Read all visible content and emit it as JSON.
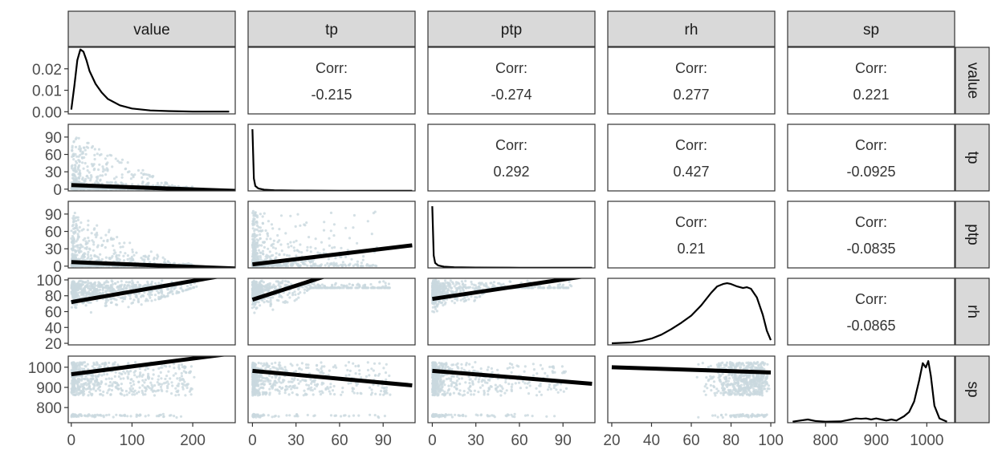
{
  "chart_data": {
    "type": "scatter",
    "variables": [
      "value",
      "tp",
      "ptp",
      "rh",
      "sp"
    ],
    "corr_label": "Corr:",
    "correlations": [
      {
        "row": "value",
        "col": "tp",
        "value": "-0.215"
      },
      {
        "row": "value",
        "col": "ptp",
        "value": "-0.274"
      },
      {
        "row": "value",
        "col": "rh",
        "value": "0.277"
      },
      {
        "row": "value",
        "col": "sp",
        "value": "0.221"
      },
      {
        "row": "tp",
        "col": "ptp",
        "value": "0.292"
      },
      {
        "row": "tp",
        "col": "rh",
        "value": "0.427"
      },
      {
        "row": "tp",
        "col": "sp",
        "value": "-0.0925"
      },
      {
        "row": "ptp",
        "col": "rh",
        "value": "0.21"
      },
      {
        "row": "ptp",
        "col": "sp",
        "value": "-0.0835"
      },
      {
        "row": "rh",
        "col": "sp",
        "value": "-0.0865"
      }
    ],
    "ranges": {
      "value": [
        -5,
        270
      ],
      "tp": [
        -3,
        112
      ],
      "ptp": [
        -3,
        112
      ],
      "rh": [
        18,
        102
      ],
      "sp": [
        725,
        1055
      ]
    },
    "x_ticks": {
      "value": [
        0,
        100,
        200
      ],
      "tp": [
        0,
        30,
        60,
        90
      ],
      "ptp": [
        0,
        30,
        60,
        90
      ],
      "rh": [
        20,
        40,
        60,
        80,
        100
      ],
      "sp": [
        800,
        900,
        1000
      ]
    },
    "y_ticks": {
      "value": [
        "0.00",
        "0.01",
        "0.02"
      ],
      "tp": [
        0,
        30,
        60,
        90
      ],
      "ptp": [
        0,
        30,
        60,
        90
      ],
      "rh": [
        20,
        40,
        60,
        80,
        100
      ],
      "sp": [
        800,
        900,
        1000
      ]
    },
    "density_ylim": [
      -0.001,
      0.03
    ],
    "densities": {
      "value": {
        "x": [
          0,
          5,
          10,
          15,
          20,
          25,
          30,
          40,
          50,
          60,
          80,
          100,
          130,
          160,
          200,
          260
        ],
        "y": [
          0.001,
          0.012,
          0.024,
          0.029,
          0.028,
          0.024,
          0.019,
          0.013,
          0.009,
          0.006,
          0.003,
          0.0015,
          0.0006,
          0.0003,
          0.0001,
          0.0001
        ]
      },
      "tp": {
        "x": [
          0,
          0.5,
          1,
          2,
          4,
          8,
          15,
          30,
          60,
          110
        ],
        "y": [
          1.0,
          0.6,
          0.2,
          0.08,
          0.04,
          0.02,
          0.01,
          0.005,
          0.002,
          0.001
        ]
      },
      "ptp": {
        "x": [
          0,
          0.5,
          1,
          2,
          4,
          8,
          15,
          30,
          60,
          110
        ],
        "y": [
          1.0,
          0.6,
          0.2,
          0.08,
          0.04,
          0.02,
          0.01,
          0.005,
          0.002,
          0.001
        ]
      },
      "rh": {
        "x": [
          20,
          30,
          35,
          40,
          45,
          50,
          55,
          60,
          65,
          70,
          73,
          76,
          78,
          80,
          83,
          86,
          88,
          90,
          93,
          96,
          98,
          100
        ],
        "y": [
          0.002,
          0.003,
          0.005,
          0.008,
          0.013,
          0.02,
          0.028,
          0.037,
          0.05,
          0.066,
          0.074,
          0.077,
          0.078,
          0.077,
          0.074,
          0.072,
          0.073,
          0.071,
          0.06,
          0.038,
          0.018,
          0.006
        ]
      },
      "sp": {
        "x": [
          735,
          750,
          765,
          780,
          800,
          830,
          850,
          860,
          870,
          880,
          890,
          900,
          910,
          920,
          930,
          940,
          955,
          965,
          975,
          985,
          992,
          998,
          1003,
          1008,
          1015,
          1025,
          1040
        ],
        "y": [
          0.0005,
          0.001,
          0.0015,
          0.0008,
          0.0005,
          0.0006,
          0.0015,
          0.002,
          0.0018,
          0.002,
          0.0015,
          0.002,
          0.0015,
          0.001,
          0.0015,
          0.001,
          0.003,
          0.005,
          0.01,
          0.02,
          0.028,
          0.026,
          0.029,
          0.022,
          0.008,
          0.002,
          0.0005
        ]
      }
    },
    "regression_lines": [
      {
        "x": "value",
        "y": "tp",
        "x0": 0,
        "y0": 7,
        "x1": 270,
        "y1": -3
      },
      {
        "x": "value",
        "y": "ptp",
        "x0": 0,
        "y0": 7,
        "x1": 270,
        "y1": -4
      },
      {
        "x": "value",
        "y": "rh",
        "x0": 0,
        "y0": 72,
        "x1": 270,
        "y1": 108
      },
      {
        "x": "value",
        "y": "sp",
        "x0": 0,
        "y0": 965,
        "x1": 270,
        "y1": 1070
      },
      {
        "x": "tp",
        "y": "ptp",
        "x0": 0,
        "y0": 3,
        "x1": 110,
        "y1": 36
      },
      {
        "x": "tp",
        "y": "rh",
        "x0": 0,
        "y0": 75,
        "x1": 110,
        "y1": 140
      },
      {
        "x": "ptp",
        "y": "rh",
        "x0": 0,
        "y0": 76,
        "x1": 110,
        "y1": 106
      },
      {
        "x": "tp",
        "y": "sp",
        "x0": 0,
        "y0": 982,
        "x1": 110,
        "y1": 910
      },
      {
        "x": "ptp",
        "y": "sp",
        "x0": 0,
        "y0": 982,
        "x1": 110,
        "y1": 918
      },
      {
        "x": "rh",
        "y": "sp",
        "x0": 20,
        "y0": 1000,
        "x1": 100,
        "y1": 974
      }
    ],
    "colors": {
      "scatter": "#c9d8df",
      "line": "#000000",
      "strip_fill": "#d9d9d9",
      "panel_border": "#333333",
      "tick_label": "#4d4d4d"
    }
  }
}
